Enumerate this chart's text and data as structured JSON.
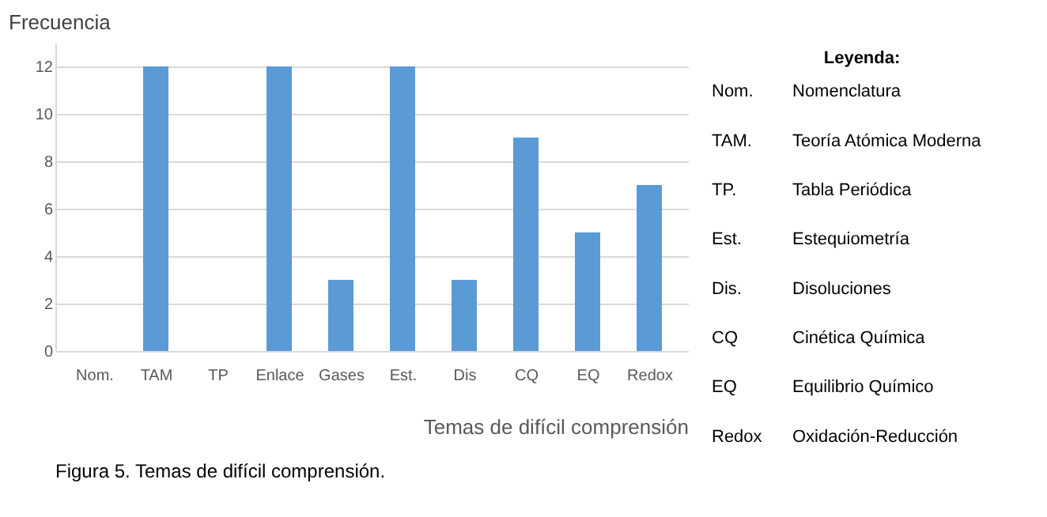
{
  "chart_data": {
    "type": "bar",
    "categories": [
      "Nom.",
      "TAM",
      "TP",
      "Enlace",
      "Gases",
      "Est.",
      "Dis",
      "CQ",
      "EQ",
      "Redox"
    ],
    "values": [
      0,
      12,
      0,
      12,
      3,
      12,
      3,
      9,
      5,
      7
    ],
    "color": "#5b9bd5",
    "ylabel": "Frecuencia",
    "xlabel": "Temas de difícil comprensión",
    "ylim": [
      0,
      13
    ],
    "yticks": [
      0,
      2,
      4,
      6,
      8,
      10,
      12
    ],
    "grid": "y",
    "annotations": [
      "Leyenda:",
      "Nom.",
      "Nomenclatura",
      "TAM.",
      "Teoría Atómica Moderna",
      "TP.",
      "Tabla Periódica",
      "Est.",
      "Estequiometría",
      "Dis.",
      "Disoluciones",
      "CQ",
      "Cinética Química",
      "EQ",
      "Equilibrio Químico",
      "Redox",
      "Oxidación-Reducción",
      "Figura 5. Temas de difícil comprensión."
    ]
  }
}
